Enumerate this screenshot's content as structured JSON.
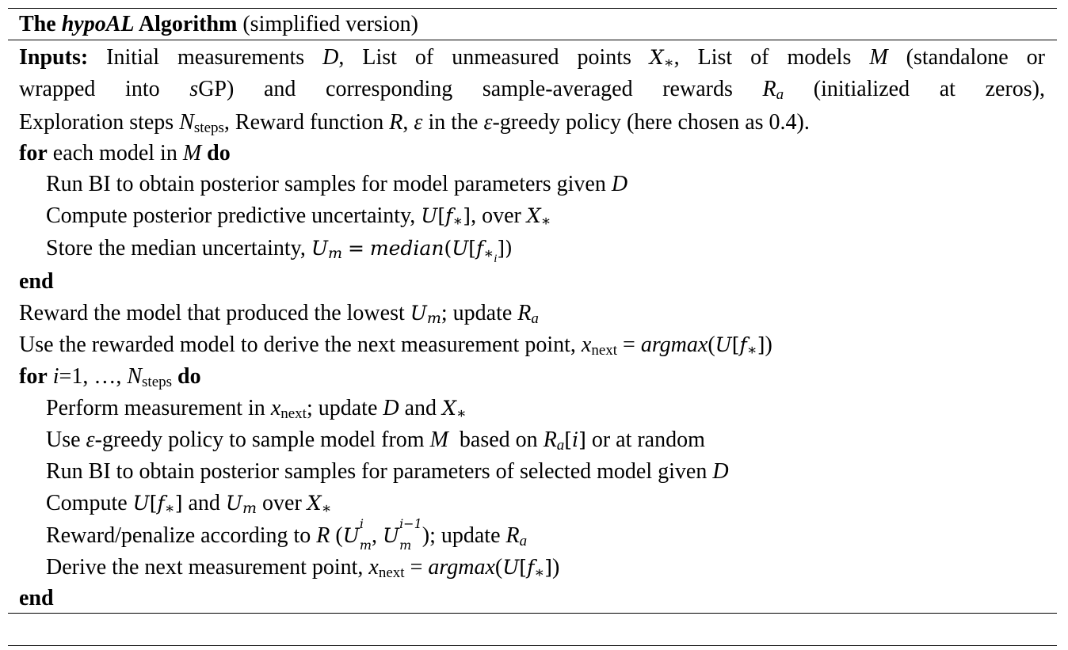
{
  "title": {
    "bold_prefix": "The ",
    "bold_italic": "hypoAL",
    "bold_suffix": " Algorithm",
    "normal": " (simplified version)"
  },
  "inputs": {
    "label": "Inputs:",
    "line1": " Initial measurements D, List of unmeasured points X∗, List of models M (standalone or",
    "line2": "wrapped into sGP) and corresponding sample-averaged rewards Ra (initialized at zeros),",
    "line3": "Exploration steps Nsteps, Reward function R, ε in the ε-greedy policy (here chosen as 0.4)."
  },
  "loop1": {
    "for_kw": "for",
    "header_text": " each model in ",
    "header_var": "M",
    "do_kw": " do",
    "step1": "Run BI to obtain posterior samples for model parameters given D",
    "step2": "Compute posterior predictive uncertainty, U[f∗], over X∗",
    "step3": "Store the median uncertainty, Um = median(U[f∗i])",
    "end_kw": "end"
  },
  "middle": {
    "line1": "Reward the model that produced the lowest Um; update Ra",
    "line2": "Use the rewarded model to derive the next measurement point, xnext = argmax(U[f∗])"
  },
  "loop2": {
    "header": "for i=1, …, Nsteps do",
    "step1": "Perform measurement in xnext; update D and X∗",
    "step2": "Use ε-greedy policy to sample model from M  based on Ra[i] or at random",
    "step3": "Run BI to obtain posterior samples for parameters of selected model given D",
    "step4": "Compute U[f∗] and Um over X∗",
    "step5": "Reward/penalize according to R (Um^i, Um^i−1); update Ra",
    "step6": "Derive the next measurement point, xnext = argmax(U[f∗])",
    "end_kw": "end"
  }
}
